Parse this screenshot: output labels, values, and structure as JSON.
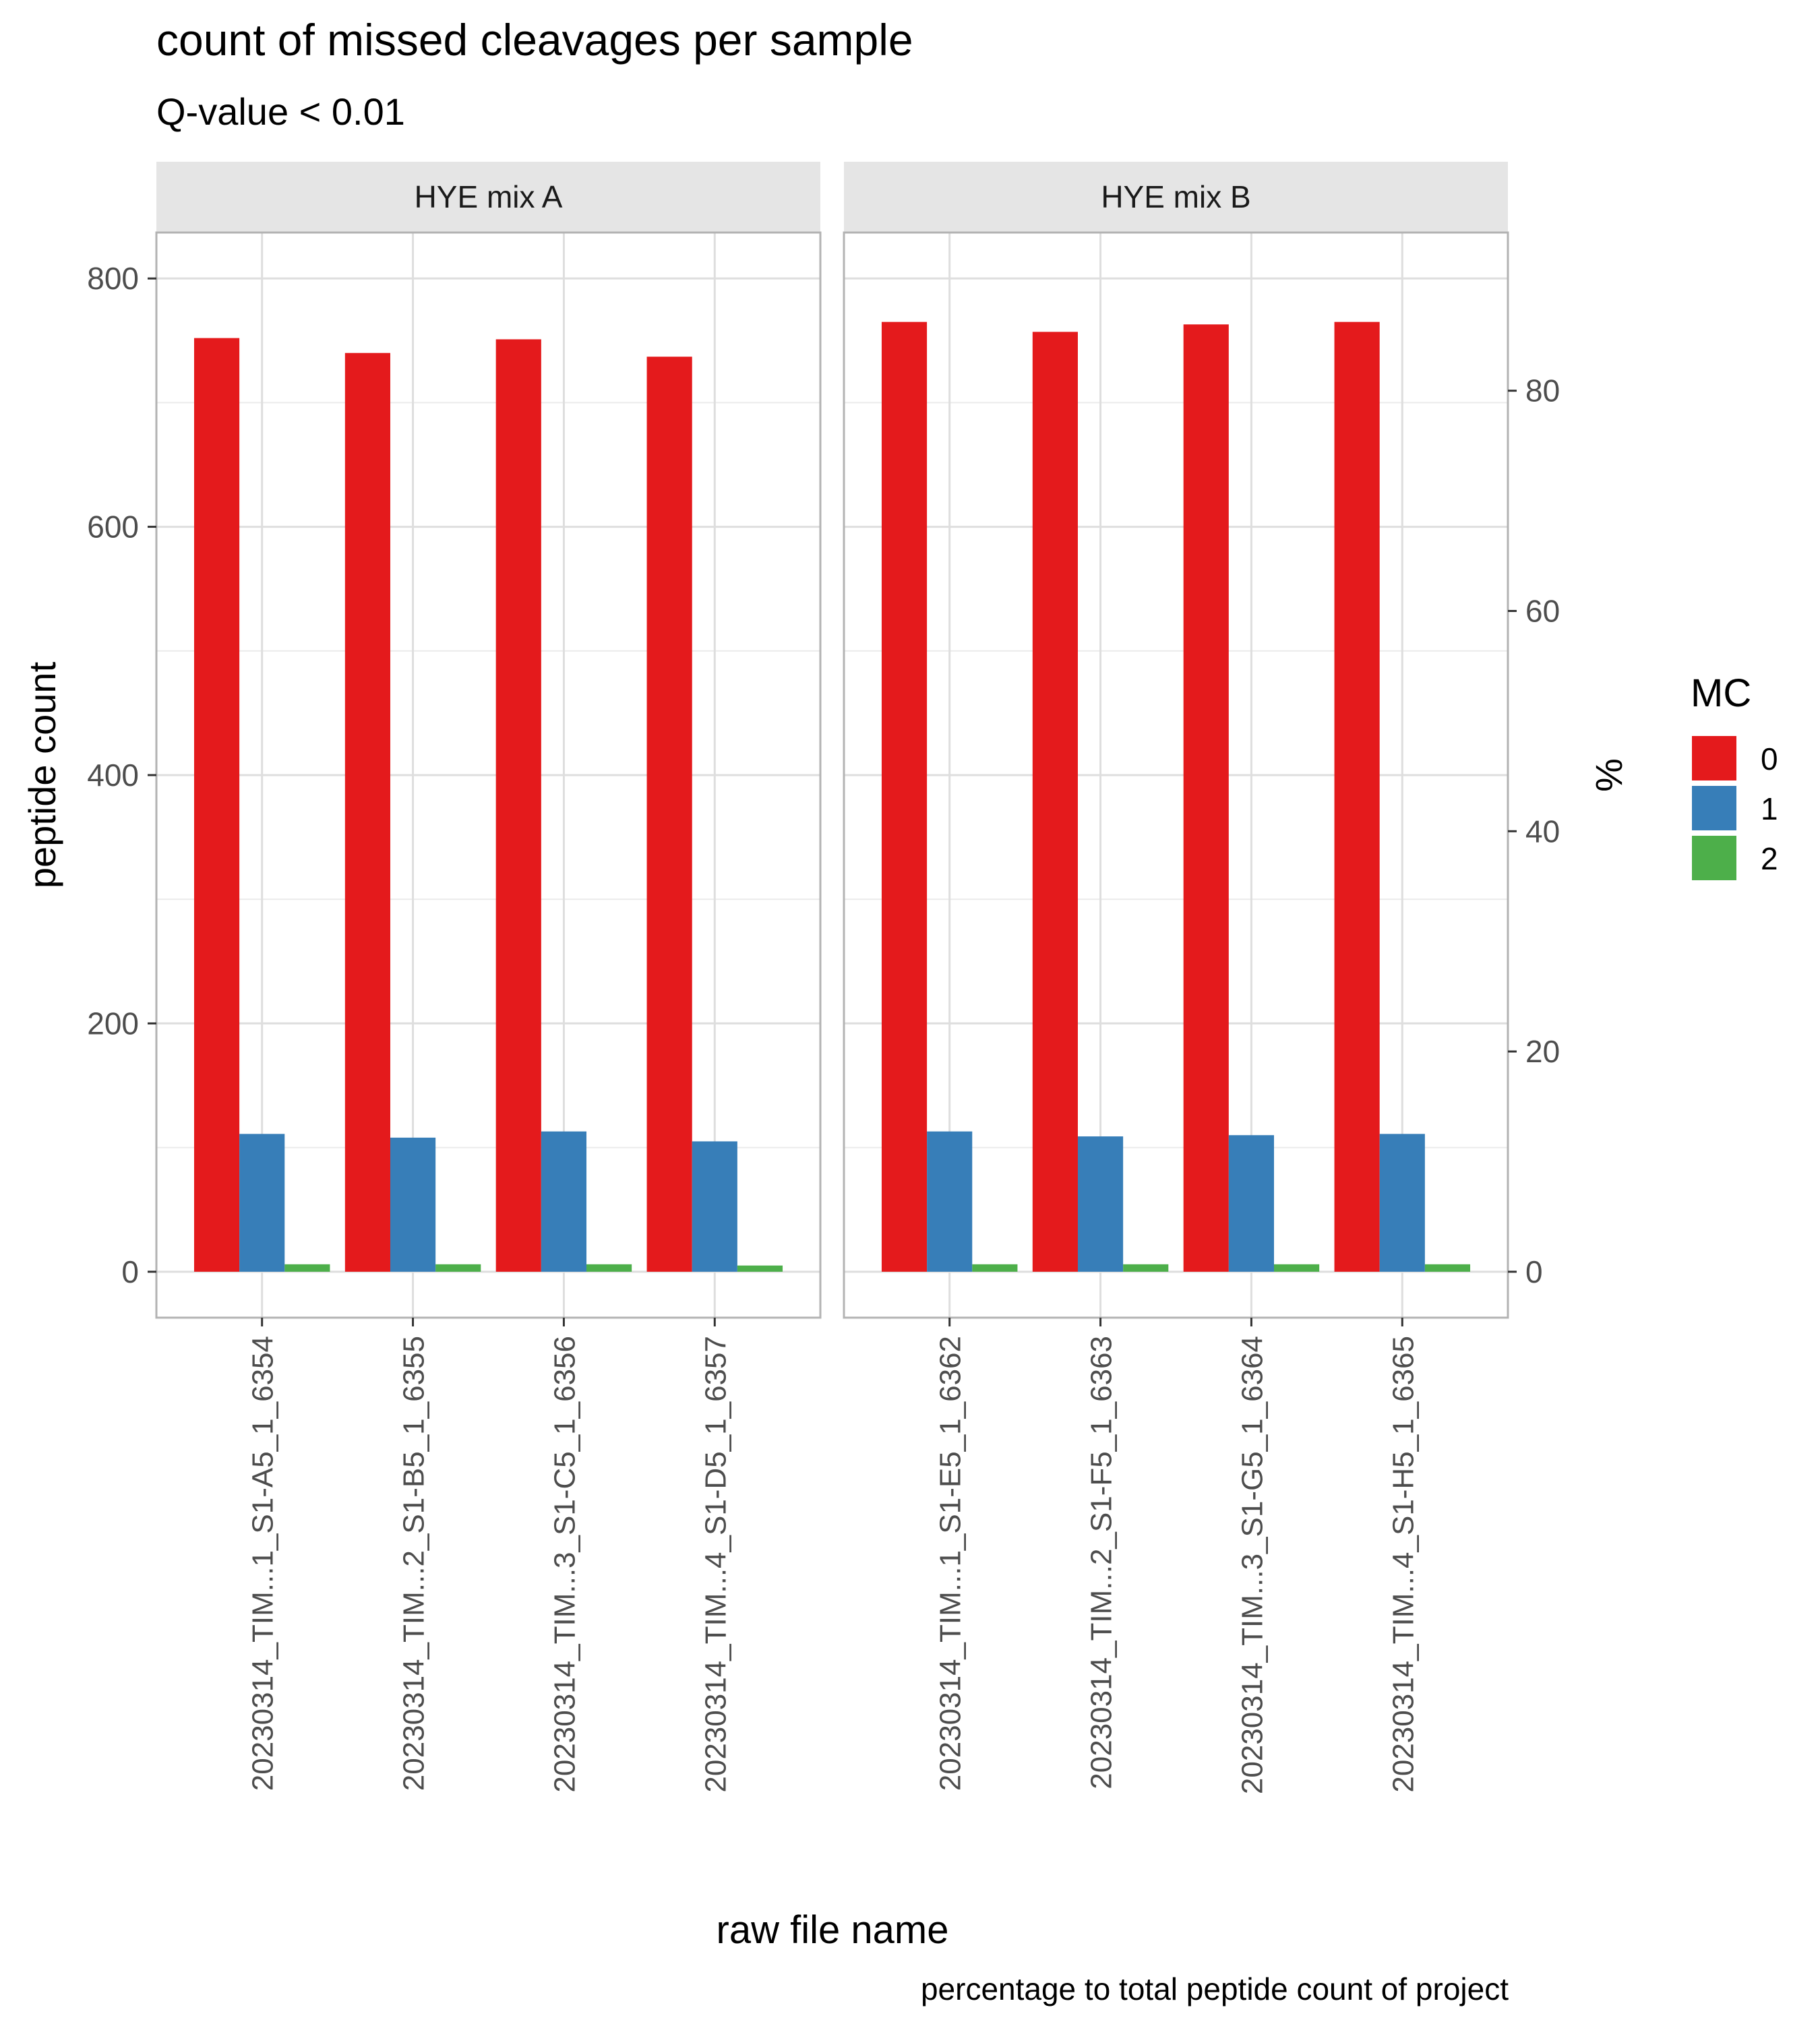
{
  "chart_data": {
    "type": "bar",
    "title": "count of missed cleavages per sample",
    "subtitle": "Q-value < 0.01",
    "xlabel": "raw file name",
    "ylabel": "peptide count",
    "ylabel_right": "%",
    "caption": "percentage to total peptide count of project",
    "ylim": [
      -37,
      800
    ],
    "y_ticks": [
      0,
      200,
      400,
      600,
      800
    ],
    "y_right_ticks": [
      0,
      20,
      40,
      60,
      80
    ],
    "y_right_scale_total": 887,
    "grid": true,
    "legend": {
      "title": "MC",
      "position": "right",
      "entries": [
        {
          "label": "0",
          "color": "#E41A1C"
        },
        {
          "label": "1",
          "color": "#377EB8"
        },
        {
          "label": "2",
          "color": "#4DAF4A"
        }
      ]
    },
    "facets": [
      {
        "label": "HYE mix A",
        "categories": [
          "20230314_TIM...1_S1-A5_1_6354",
          "20230314_TIM...2_S1-B5_1_6355",
          "20230314_TIM...3_S1-C5_1_6356",
          "20230314_TIM...4_S1-D5_1_6357"
        ],
        "series": [
          {
            "name": "0",
            "values": [
              752,
              740,
              751,
              737
            ]
          },
          {
            "name": "1",
            "values": [
              111,
              108,
              113,
              105
            ]
          },
          {
            "name": "2",
            "values": [
              6,
              6,
              6,
              5
            ]
          }
        ]
      },
      {
        "label": "HYE mix B",
        "categories": [
          "20230314_TIM...1_S1-E5_1_6362",
          "20230314_TIM...2_S1-F5_1_6363",
          "20230314_TIM...3_S1-G5_1_6364",
          "20230314_TIM...4_S1-H5_1_6365"
        ],
        "series": [
          {
            "name": "0",
            "values": [
              765,
              757,
              763,
              765
            ]
          },
          {
            "name": "1",
            "values": [
              113,
              109,
              110,
              111
            ]
          },
          {
            "name": "2",
            "values": [
              6,
              6,
              6,
              6
            ]
          }
        ]
      }
    ]
  }
}
